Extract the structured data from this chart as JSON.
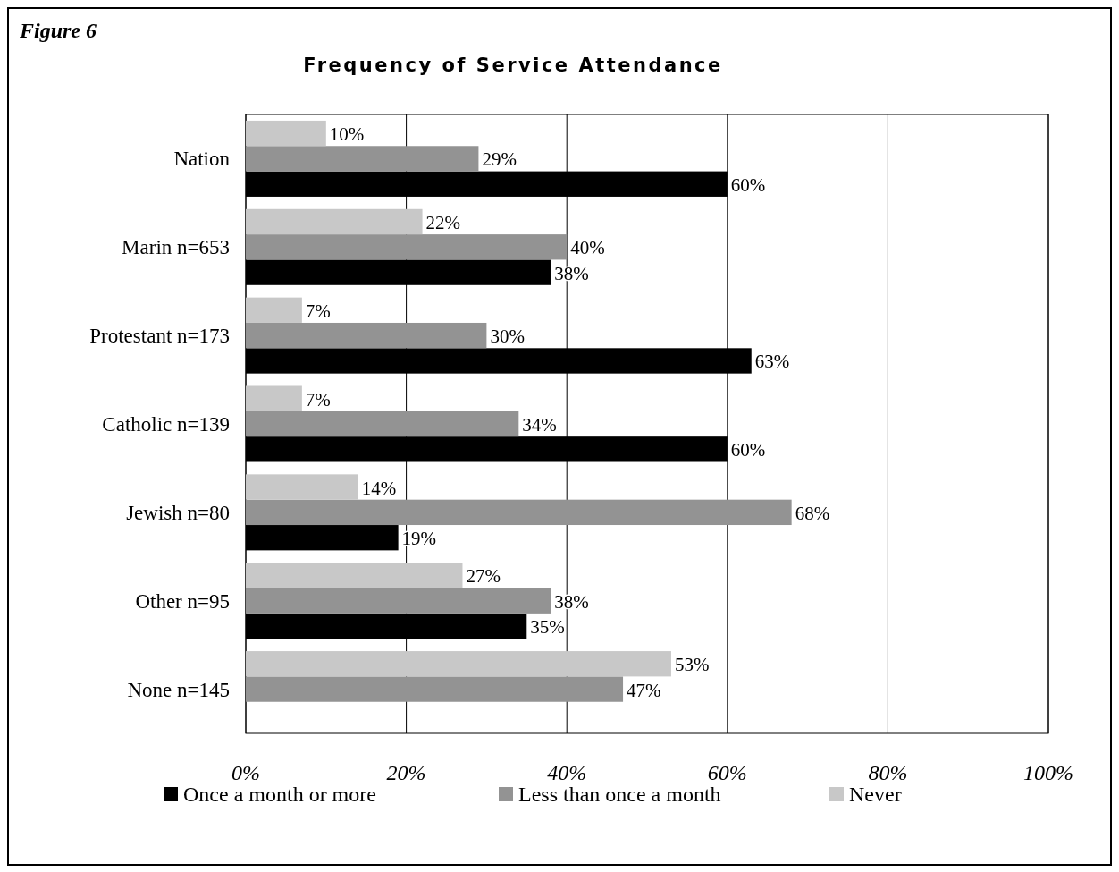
{
  "chart_data": {
    "type": "bar",
    "orientation": "horizontal",
    "title": "Frequency of Service Attendance",
    "annotations": [
      "Figure 6"
    ],
    "categories": [
      "Nation",
      "Marin n=653",
      "Protestant n=173",
      "Catholic n=139",
      "Jewish n=80",
      "Other n=95",
      "None n=145"
    ],
    "series": [
      {
        "name": "Once a month or more",
        "color": "#000000",
        "values": [
          60,
          38,
          63,
          60,
          19,
          35,
          null
        ],
        "value_labels": [
          "60%",
          "38%",
          "63%",
          "60%",
          "19%",
          "35%",
          null
        ]
      },
      {
        "name": "Less than once a month",
        "color": "#939393",
        "values": [
          29,
          40,
          30,
          34,
          68,
          38,
          47
        ],
        "value_labels": [
          "29%",
          "40%",
          "30%",
          "34%",
          "68%",
          "38%",
          "47%"
        ]
      },
      {
        "name": "Never",
        "color": "#c8c8c8",
        "values": [
          10,
          22,
          7,
          7,
          14,
          27,
          53
        ],
        "value_labels": [
          "10%",
          "22%",
          "7%",
          "7%",
          "14%",
          "27%",
          "53%"
        ]
      }
    ],
    "xlim": [
      0,
      100
    ],
    "xticks": [
      {
        "value": 0,
        "label": "0%"
      },
      {
        "value": 20,
        "label": "20%"
      },
      {
        "value": 40,
        "label": "40%"
      },
      {
        "value": 60,
        "label": "60%"
      },
      {
        "value": 80,
        "label": "80%"
      },
      {
        "value": 100,
        "label": "100%"
      }
    ],
    "grid": "x",
    "legend": "bottom"
  }
}
